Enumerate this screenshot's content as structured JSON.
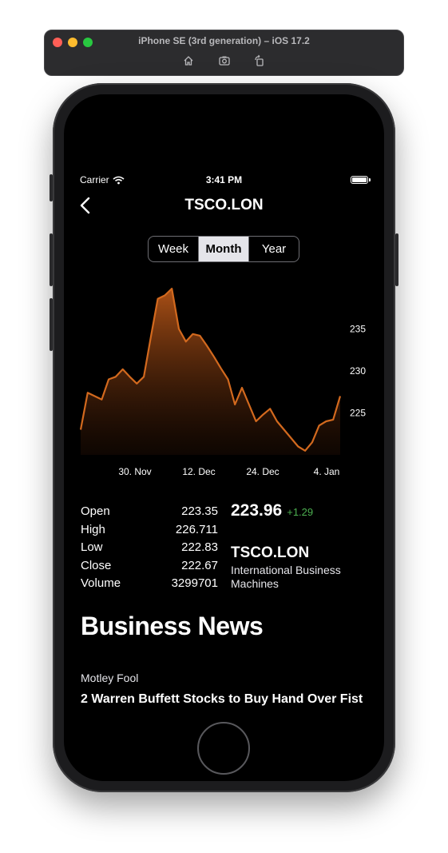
{
  "simulator": {
    "title": "iPhone SE (3rd generation) – iOS 17.2",
    "toolbar_icons": [
      "home-icon",
      "screenshot-icon",
      "rotate-icon"
    ]
  },
  "status_bar": {
    "carrier": "Carrier",
    "time": "3:41 PM"
  },
  "nav": {
    "title": "TSCO.LON",
    "back_icon": "chevron-left-icon"
  },
  "segments": {
    "items": [
      "Week",
      "Month",
      "Year"
    ],
    "selected": "Month"
  },
  "chart_data": {
    "type": "area",
    "x_tick_labels": [
      "30. Nov",
      "12. Dec",
      "24. Dec",
      "4. Jan"
    ],
    "y_tick_labels": [
      "235",
      "230",
      "225"
    ],
    "y_ticks": [
      235,
      230,
      225
    ],
    "ylim": [
      220,
      240
    ],
    "xlim": [
      0,
      46
    ],
    "points": [
      [
        0,
        223.0
      ],
      [
        1,
        227.4
      ],
      [
        2,
        227.0
      ],
      [
        3,
        226.6
      ],
      [
        4,
        229.0
      ],
      [
        5,
        229.3
      ],
      [
        6,
        230.2
      ],
      [
        7,
        229.3
      ],
      [
        8,
        228.5
      ],
      [
        9,
        229.3
      ],
      [
        10,
        234.0
      ],
      [
        11,
        238.6
      ],
      [
        12,
        239.0
      ],
      [
        13,
        239.8
      ],
      [
        14,
        235.0
      ],
      [
        15,
        233.5
      ],
      [
        16,
        234.4
      ],
      [
        17,
        234.2
      ],
      [
        18,
        233.0
      ],
      [
        19,
        231.7
      ],
      [
        20,
        230.3
      ],
      [
        21,
        229.0
      ],
      [
        22,
        226.0
      ],
      [
        23,
        228.0
      ],
      [
        24,
        226.0
      ],
      [
        25,
        224.0
      ],
      [
        26,
        224.8
      ],
      [
        27,
        225.5
      ],
      [
        28,
        224.0
      ],
      [
        29,
        223.0
      ],
      [
        30,
        222.0
      ],
      [
        31,
        221.0
      ],
      [
        32,
        220.5
      ],
      [
        33,
        221.5
      ],
      [
        34,
        223.5
      ],
      [
        35,
        224.0
      ],
      [
        36,
        224.2
      ],
      [
        37,
        227.0
      ]
    ],
    "line_color": "#d2691e",
    "fill_top": "#b35417",
    "grid": false
  },
  "stats": [
    {
      "label": "Open",
      "value": "223.35"
    },
    {
      "label": "High",
      "value": "226.711"
    },
    {
      "label": "Low",
      "value": "222.83"
    },
    {
      "label": "Close",
      "value": "222.67"
    },
    {
      "label": "Volume",
      "value": "3299701"
    }
  ],
  "quote": {
    "price": "223.96",
    "change": "+1.29",
    "symbol": "TSCO.LON",
    "company": "International Business Machines"
  },
  "news": {
    "heading": "Business News",
    "items": [
      {
        "source": "Motley Fool",
        "headline": "2 Warren Buffett Stocks to Buy Hand Over Fist"
      }
    ]
  },
  "colors": {
    "accent": "#d2691e",
    "positive": "#4caf50"
  }
}
